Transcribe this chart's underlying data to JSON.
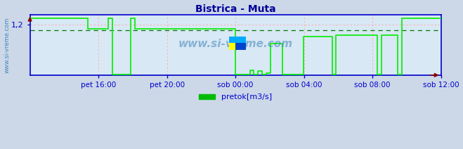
{
  "title": "Bistrica - Muta",
  "title_color": "#000099",
  "title_fontsize": 10,
  "ylabel_text": "www.si-vreme.com",
  "watermark": "www.si-vreme.com",
  "bg_color": "#ccd8e8",
  "plot_bg_color": "#d8e8f4",
  "line_color": "#00ee00",
  "axis_color": "#0000cc",
  "grid_color": "#ffaaaa",
  "avg_line_color": "#007700",
  "ytick_label": "1,2",
  "ytick_value": 1.2,
  "xlabel_labels": [
    "pet 16:00",
    "pet 20:00",
    "sob 00:00",
    "sob 04:00",
    "sob 08:00",
    "sob 12:00"
  ],
  "legend_label": "pretok[m3/s]",
  "legend_color": "#00bb00",
  "ylim_min": 0.0,
  "ylim_max": 1.44,
  "avg_value": 1.075,
  "data_x": [
    0.0,
    0.14,
    0.14,
    0.19,
    0.19,
    0.2,
    0.2,
    0.245,
    0.245,
    0.255,
    0.255,
    0.295,
    0.295,
    0.345,
    0.345,
    0.5,
    0.5,
    0.535,
    0.535,
    0.545,
    0.545,
    0.555,
    0.555,
    0.565,
    0.565,
    0.575,
    0.575,
    0.585,
    0.585,
    0.615,
    0.615,
    0.625,
    0.625,
    0.665,
    0.665,
    0.675,
    0.675,
    0.735,
    0.735,
    0.745,
    0.745,
    0.785,
    0.785,
    0.845,
    0.845,
    0.855,
    0.855,
    0.895,
    0.895,
    0.905,
    0.905,
    1.0
  ],
  "data_y": [
    1.35,
    1.35,
    1.1,
    1.1,
    1.35,
    1.35,
    0.02,
    0.02,
    1.35,
    1.35,
    1.1,
    1.1,
    1.1,
    1.1,
    1.1,
    1.1,
    0.02,
    0.02,
    0.12,
    0.12,
    0.02,
    0.02,
    0.1,
    0.1,
    0.02,
    0.02,
    0.05,
    0.05,
    0.75,
    0.75,
    0.02,
    0.02,
    0.02,
    0.02,
    0.92,
    0.92,
    0.92,
    0.92,
    0.02,
    0.02,
    0.95,
    0.95,
    0.95,
    0.95,
    0.02,
    0.02,
    0.95,
    0.95,
    0.02,
    0.02,
    1.35,
    1.35
  ]
}
